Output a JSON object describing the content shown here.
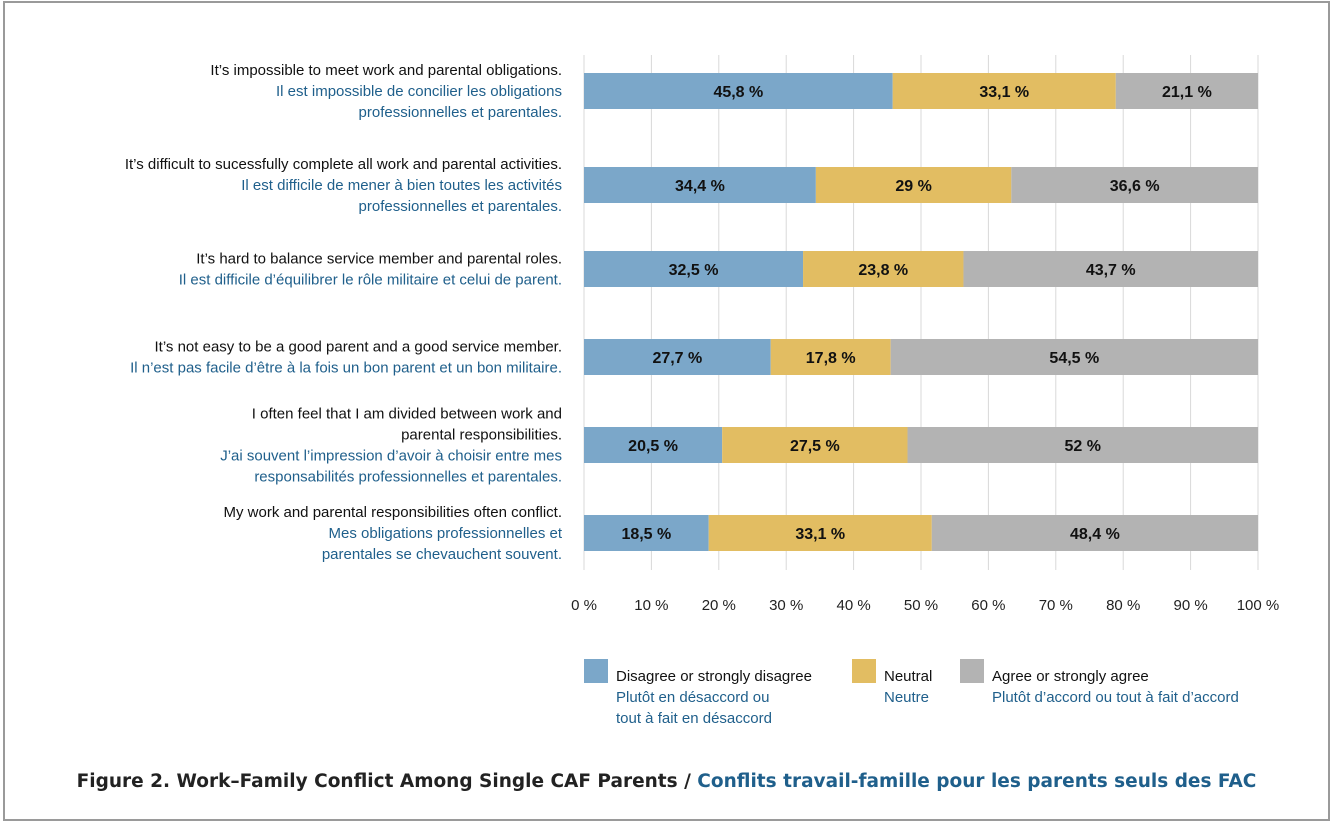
{
  "chart_data": {
    "type": "bar",
    "stacked": true,
    "orientation": "horizontal",
    "percent_stacked": true,
    "categories": [
      {
        "en": "It’s impossible to meet work and parental obligations.",
        "fr": [
          "Il est impossible de concilier les obligations",
          "professionnelles et parentales."
        ]
      },
      {
        "en": "It’s difficult to sucessfully complete all work and parental activities.",
        "fr": [
          "Il est difficile de mener à bien toutes les activités",
          "professionnelles et parentales."
        ]
      },
      {
        "en": "It’s hard to balance service member and parental roles.",
        "fr": [
          "Il est difficile d’équilibrer le rôle militaire et celui de parent."
        ]
      },
      {
        "en": "It’s not easy to be a good parent and a good service member.",
        "fr": [
          "Il n’est pas facile d’être à la fois un bon parent et un bon militaire."
        ]
      },
      {
        "en": [
          "I often feel that I am divided between work and",
          "parental responsibilities."
        ],
        "fr": [
          "J’ai souvent l’impression d’avoir à choisir entre mes",
          "responsabilités professionnelles et parentales."
        ]
      },
      {
        "en": "My work and parental responsibilities often conflict.",
        "fr": [
          "Mes obligations professionnelles et",
          "parentales se chevauchent souvent."
        ]
      }
    ],
    "series": [
      {
        "name": "Disagree or strongly disagree",
        "name_fr": [
          "Plutôt en désaccord ou",
          "tout à fait en désaccord"
        ],
        "color": "#7ba7c9",
        "values": [
          45.8,
          34.4,
          32.5,
          27.7,
          20.5,
          18.5
        ],
        "labels": [
          "45,8 %",
          "34,4 %",
          "32,5 %",
          "27,7 %",
          "20,5 %",
          "18,5 %"
        ]
      },
      {
        "name": "Neutral",
        "name_fr": [
          "Neutre"
        ],
        "color": "#e2bd62",
        "values": [
          33.1,
          29,
          23.8,
          17.8,
          27.5,
          33.1
        ],
        "labels": [
          "33,1 %",
          "29 %",
          "23,8 %",
          "17,8 %",
          "27,5 %",
          "33,1 %"
        ]
      },
      {
        "name": "Agree or strongly agree",
        "name_fr": [
          "Plutôt d’accord ou tout à fait d’accord"
        ],
        "color": "#b3b3b3",
        "values": [
          21.1,
          36.6,
          43.7,
          54.5,
          52,
          48.4
        ],
        "labels": [
          "21,1 %",
          "36,6 %",
          "43,7 %",
          "54,5 %",
          "52 %",
          "48,4 %"
        ]
      }
    ],
    "xlim": [
      0,
      100
    ],
    "xticks": [
      "0 %",
      "10 %",
      "20 %",
      "30 %",
      "40 %",
      "50 %",
      "60 %",
      "70 %",
      "80 %",
      "90 %",
      "100 %"
    ],
    "grid": true,
    "legend_position": "bottom",
    "title_en": "Figure 2. Work–Family Conflict Among Single CAF Parents",
    "title_sep": " / ",
    "title_fr": "Conflits travail-famille pour les parents seuls des FAC"
  }
}
